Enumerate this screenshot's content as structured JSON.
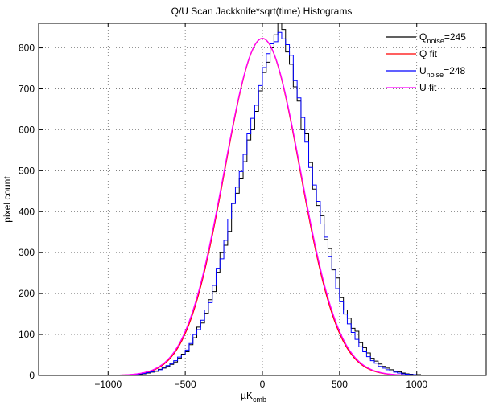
{
  "chart_data": {
    "type": "line",
    "title": "Q/U Scan Jackknife*sqrt(time) Histograms",
    "xlabel": {
      "base": "µK",
      "sub": "cmb"
    },
    "ylabel": "pixel count",
    "xlim": [
      -1450,
      1450
    ],
    "ylim": [
      0,
      860
    ],
    "xticks": [
      -1000,
      -500,
      0,
      500,
      1000
    ],
    "xtick_labels": [
      "−1000",
      "−500",
      "0",
      "500",
      "1000"
    ],
    "yticks": [
      0,
      100,
      200,
      300,
      400,
      500,
      600,
      700,
      800
    ],
    "ytick_labels": [
      "0",
      "100",
      "200",
      "300",
      "400",
      "500",
      "600",
      "700",
      "800"
    ],
    "grid": true,
    "legend_position": "top-right",
    "bin_width": 25,
    "series": [
      {
        "name": "Q_noise=245",
        "legend": {
          "base": "Q",
          "sub": "noise",
          "tail": "=245"
        },
        "kind": "step",
        "color": "#000000",
        "bin_start": -900,
        "values": [
          1,
          0,
          2,
          3,
          3,
          4,
          6,
          8,
          10,
          15,
          18,
          22,
          27,
          33,
          42,
          52,
          58,
          75,
          92,
          118,
          128,
          152,
          185,
          205,
          252,
          300,
          318,
          352,
          420,
          445,
          480,
          522,
          575,
          600,
          645,
          695,
          740,
          765,
          800,
          832,
          860,
          845,
          790,
          760,
          705,
          670,
          600,
          590,
          520,
          455,
          415,
          390,
          332,
          310,
          258,
          238,
          190,
          160,
          140,
          115,
          108,
          80,
          68,
          55,
          42,
          35,
          28,
          22,
          18,
          14,
          10,
          9,
          6,
          4,
          3,
          2,
          2,
          1
        ]
      },
      {
        "name": "Q fit",
        "legend": {
          "base": "Q fit",
          "sub": "",
          "tail": ""
        },
        "kind": "gauss",
        "color": "#ff0000",
        "amp": 823,
        "mu": 0,
        "sigma": 245
      },
      {
        "name": "U_noise=248",
        "legend": {
          "base": "U",
          "sub": "noise",
          "tail": "=248"
        },
        "kind": "step",
        "color": "#0000ff",
        "bin_start": -900,
        "values": [
          0,
          1,
          1,
          2,
          4,
          5,
          7,
          9,
          11,
          14,
          20,
          24,
          29,
          36,
          45,
          50,
          62,
          78,
          100,
          112,
          135,
          160,
          178,
          220,
          262,
          285,
          330,
          382,
          420,
          460,
          498,
          540,
          590,
          628,
          660,
          708,
          752,
          786,
          810,
          815,
          838,
          822,
          808,
          782,
          720,
          678,
          630,
          570,
          508,
          465,
          425,
          370,
          338,
          290,
          260,
          212,
          180,
          150,
          126,
          105,
          88,
          70,
          58,
          46,
          36,
          30,
          22,
          18,
          14,
          11,
          8,
          6,
          4,
          3,
          2,
          2,
          1,
          1
        ]
      },
      {
        "name": "U fit",
        "legend": {
          "base": "U fit",
          "sub": "",
          "tail": ""
        },
        "kind": "gauss",
        "color": "#ff00ff",
        "amp": 823,
        "mu": 0,
        "sigma": 248
      }
    ]
  }
}
